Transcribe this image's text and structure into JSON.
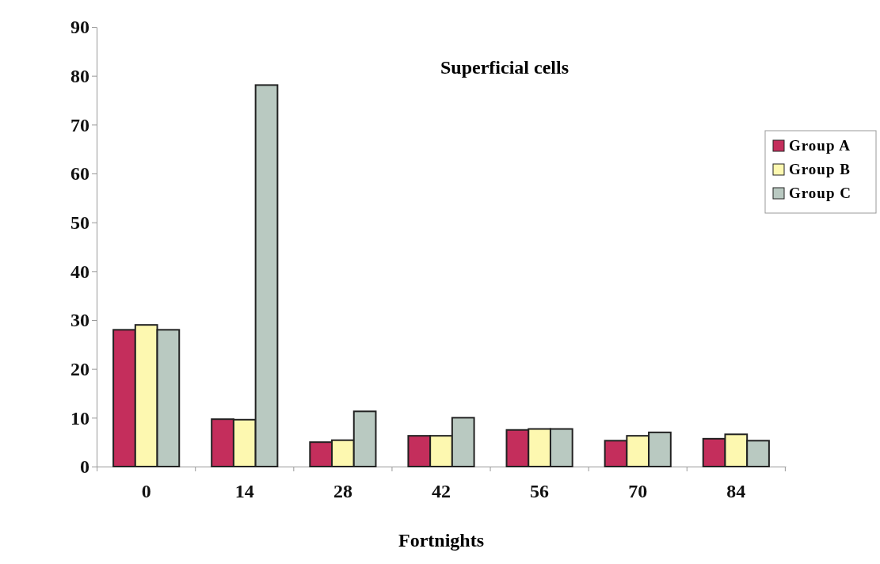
{
  "chart_data": {
    "type": "bar",
    "title": "Superficial cells",
    "xlabel": "Fortnights",
    "categories": [
      "0",
      "14",
      "28",
      "42",
      "56",
      "70",
      "84"
    ],
    "series": [
      {
        "name": "Group A",
        "color": "#c42e5c",
        "values": [
          28,
          9.7,
          5.0,
          6.3,
          7.5,
          5.3,
          5.7
        ]
      },
      {
        "name": "Group B",
        "color": "#fdf8b0",
        "values": [
          29,
          9.6,
          5.4,
          6.3,
          7.7,
          6.3,
          6.6
        ]
      },
      {
        "name": "Group C",
        "color": "#b9c9c1",
        "values": [
          28,
          78.1,
          11.3,
          10.0,
          7.7,
          7.0,
          5.3
        ]
      }
    ],
    "ylim": [
      0,
      90
    ],
    "yticks": [
      0,
      10,
      20,
      30,
      40,
      50,
      60,
      70,
      80,
      90
    ],
    "legend": "right"
  }
}
